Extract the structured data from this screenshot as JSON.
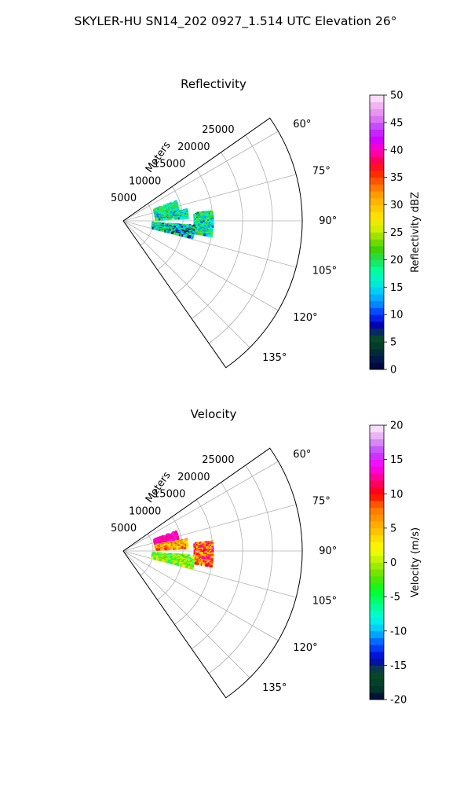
{
  "figure": {
    "suptitle": "SKYLER-HU  SN14_202  0927_1.514 UTC Elevation 26°"
  },
  "chart_data": [
    {
      "type": "heatmap",
      "projection": "polar-sector",
      "title": "Reflectivity",
      "r_axis_label": "Meters",
      "r_ticks": [
        5000,
        10000,
        15000,
        20000,
        25000
      ],
      "r_max": 30000,
      "azimuth_range_deg": [
        55,
        145
      ],
      "azimuth_ticks_deg": [
        60,
        75,
        90,
        105,
        120,
        135
      ],
      "grid": true,
      "colorbar": {
        "label": "Reflectivity dBZ",
        "min": 0,
        "max": 50,
        "ticks": [
          0,
          5,
          10,
          15,
          20,
          25,
          30,
          35,
          40,
          45,
          50
        ]
      },
      "echo_regions": [
        {
          "azimuth_range": [
            70,
            78
          ],
          "range_m": [
            5500,
            9500
          ],
          "value_range": [
            12,
            24
          ]
        },
        {
          "azimuth_range": [
            80,
            88
          ],
          "range_m": [
            5500,
            11000
          ],
          "value_range": [
            10,
            24
          ]
        },
        {
          "azimuth_range": [
            84,
            100
          ],
          "range_m": [
            12000,
            15000
          ],
          "value_range": [
            10,
            24
          ]
        },
        {
          "azimuth_range": [
            94,
            104
          ],
          "range_m": [
            5000,
            12000
          ],
          "value_range": [
            6,
            24
          ]
        }
      ]
    },
    {
      "type": "heatmap",
      "projection": "polar-sector",
      "title": "Velocity",
      "r_axis_label": "Meters",
      "r_ticks": [
        5000,
        10000,
        15000,
        20000,
        25000
      ],
      "r_max": 30000,
      "azimuth_range_deg": [
        55,
        145
      ],
      "azimuth_ticks_deg": [
        60,
        75,
        90,
        105,
        120,
        135
      ],
      "grid": true,
      "colorbar": {
        "label": "Velocity (m/s)",
        "min": -20,
        "max": 20,
        "ticks": [
          -20,
          -15,
          -10,
          -5,
          0,
          5,
          10,
          15,
          20
        ]
      },
      "echo_regions": [
        {
          "azimuth_range": [
            70,
            78
          ],
          "range_m": [
            5500,
            9500
          ],
          "value_range": [
            11,
            15
          ]
        },
        {
          "azimuth_range": [
            80,
            88
          ],
          "range_m": [
            5500,
            11000
          ],
          "value_range": [
            1,
            10
          ]
        },
        {
          "azimuth_range": [
            84,
            100
          ],
          "range_m": [
            12000,
            15000
          ],
          "value_range": [
            2,
            14
          ]
        },
        {
          "azimuth_range": [
            94,
            104
          ],
          "range_m": [
            5000,
            12000
          ],
          "value_range": [
            -7,
            4
          ]
        }
      ]
    }
  ]
}
